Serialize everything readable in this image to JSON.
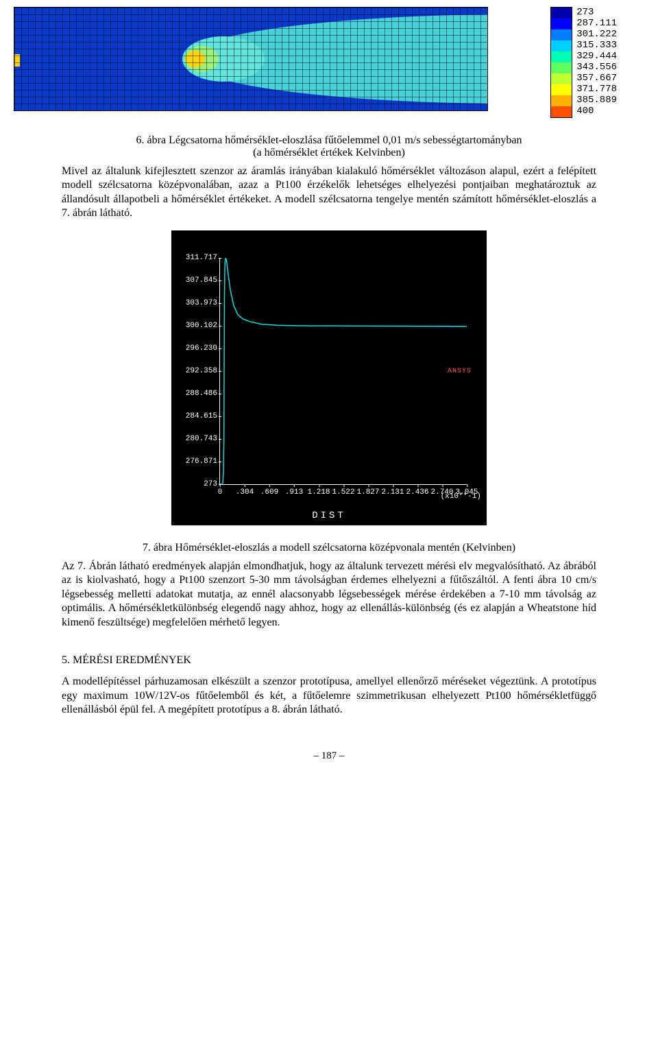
{
  "heatmap": {
    "background_color": "#0000ff",
    "mid_band_color": "#0a3acc",
    "jet_color": "#49d1d9",
    "inner_jet_color": "#61e5dc",
    "hot_core_color": "#9df27b",
    "hot_core_inner": "#ffd400"
  },
  "legend": {
    "swatches": [
      {
        "color": "#0000aa"
      },
      {
        "color": "#0000ff"
      },
      {
        "color": "#0080ff"
      },
      {
        "color": "#00d0ff"
      },
      {
        "color": "#00ffb0"
      },
      {
        "color": "#60ff60"
      },
      {
        "color": "#c0ff30"
      },
      {
        "color": "#ffff00"
      },
      {
        "color": "#ffb000"
      },
      {
        "color": "#ff5000"
      }
    ],
    "labels": [
      "273",
      "287.111",
      "301.222",
      "315.333",
      "329.444",
      "343.556",
      "357.667",
      "371.778",
      "385.889",
      "400"
    ]
  },
  "caption_fig6_l1": "6. ábra Légcsatorna hőmérséklet-eloszlása fűtőelemmel 0,01 m/s sebességtartományban",
  "caption_fig6_l2": "(a hőmérséklet értékek Kelvinben)",
  "para1": "Mivel az általunk kifejlesztett szenzor az áramlás irányában kialakuló hőmérséklet változáson alapul, ezért a felépített modell szélcsatorna középvonalában, azaz a Pt100 érzékelők lehetséges elhelyezési pontjaiban meghatároztuk az állandósult állapotbeli a hőmérséklet értékeket. A modell szélcsatorna tengelye mentén számított hőmérséklet-eloszlás a 7. ábrán látható.",
  "linechart": {
    "line_color": "#00e0e0",
    "ansys_label": "ANSYS",
    "y_ticks": [
      "311.717",
      "307.845",
      "303.973",
      "300.102",
      "296.230",
      "292.358",
      "288.486",
      "284.615",
      "280.743",
      "276.871",
      "273"
    ],
    "x_ticks": [
      "0",
      ".304",
      ".609",
      ".913",
      "1.218",
      "1.522",
      "1.827",
      "2.131",
      "2.436",
      "2.740",
      "3.045"
    ],
    "x_scale_label": "(x10**-1)",
    "x_axis_label": "DIST",
    "points": [
      [
        0.0,
        273.0
      ],
      [
        0.02,
        273.0
      ],
      [
        0.035,
        273.2
      ],
      [
        0.042,
        275.0
      ],
      [
        0.048,
        282.0
      ],
      [
        0.052,
        295.0
      ],
      [
        0.055,
        305.0
      ],
      [
        0.06,
        310.5
      ],
      [
        0.067,
        311.7
      ],
      [
        0.08,
        311.3
      ],
      [
        0.1,
        309.0
      ],
      [
        0.13,
        306.0
      ],
      [
        0.17,
        303.5
      ],
      [
        0.22,
        302.0
      ],
      [
        0.28,
        301.3
      ],
      [
        0.35,
        300.9
      ],
      [
        0.5,
        300.4
      ],
      [
        0.7,
        300.2
      ],
      [
        1.0,
        300.1
      ],
      [
        3.045,
        300.0
      ]
    ],
    "x_range": [
      0,
      3.045
    ],
    "y_range": [
      273,
      311.717
    ]
  },
  "caption_fig7": "7. ábra Hőmérséklet-eloszlás a modell szélcsatorna középvonala mentén (Kelvinben)",
  "para2": "Az 7. Ábrán látható eredmények alapján elmondhatjuk, hogy az általunk tervezett mérési elv megvalósítható. Az ábrából az is kiolvasható, hogy a Pt100 szenzort 5-30 mm távolságban érdemes elhelyezni a fűtőszáltól. A fenti ábra 10 cm/s légsebesség melletti adatokat mutatja, az ennél alacsonyabb légsebességek mérése érdekében a 7-10 mm távolság az optimális. A hőmérsékletkülönbség elegendő nagy ahhoz, hogy az ellenállás-különbség (és ez alapján a Wheatstone híd kimenő feszültsége) megfelelően mérhető legyen.",
  "section5_title": "5. MÉRÉSI EREDMÉNYEK",
  "para3": "A modellépítéssel párhuzamosan elkészült a szenzor prototípusa, amellyel ellenőrző méréseket végeztünk. A prototípus egy maximum 10W/12V-os fűtőelemből és két, a fűtőelemre szimmetrikusan elhelyezett Pt100 hőmérsékletfüggő ellenállásból épül fel. A megépített prototípus a 8. ábrán látható.",
  "page_number": "– 187 –"
}
